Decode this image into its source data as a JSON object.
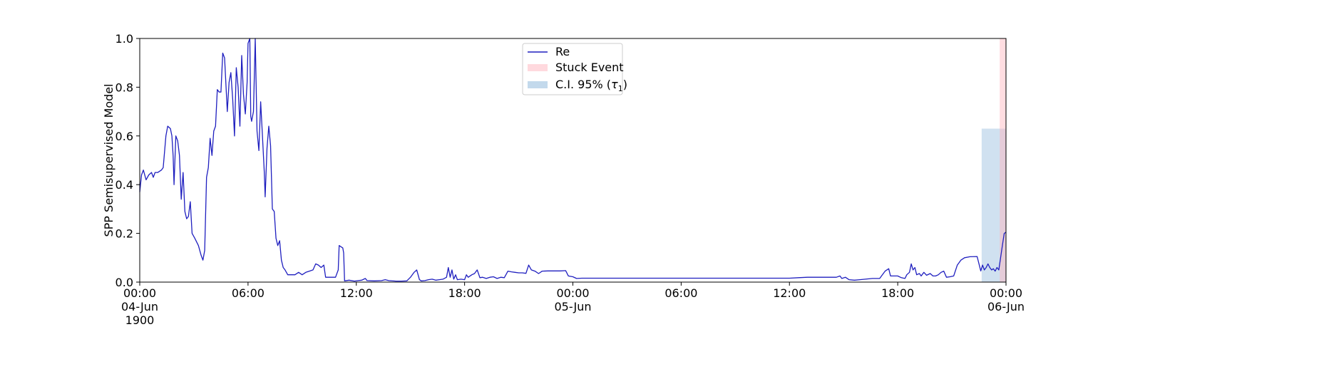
{
  "chart_data": {
    "type": "line",
    "ylabel": "SPP Semisupervised Model",
    "xlabel": "",
    "ylim": [
      0,
      1.0
    ],
    "xlim": [
      "1900-06-04 00:00",
      "1900-06-06 00:00"
    ],
    "x_unit": "hours from 1900-06-04 00:00",
    "y_ticks": [
      {
        "value": 0.0,
        "label": "0.0"
      },
      {
        "value": 0.2,
        "label": "0.2"
      },
      {
        "value": 0.4,
        "label": "0.4"
      },
      {
        "value": 0.6,
        "label": "0.6"
      },
      {
        "value": 0.8,
        "label": "0.8"
      },
      {
        "value": 1.0,
        "label": "1.0"
      }
    ],
    "x_ticks": [
      {
        "hour": 0,
        "lines": [
          "00:00",
          "04-Jun",
          "1900"
        ]
      },
      {
        "hour": 6,
        "lines": [
          "06:00"
        ]
      },
      {
        "hour": 12,
        "lines": [
          "12:00"
        ]
      },
      {
        "hour": 18,
        "lines": [
          "18:00"
        ]
      },
      {
        "hour": 24,
        "lines": [
          "00:00",
          "05-Jun"
        ]
      },
      {
        "hour": 30,
        "lines": [
          "06:00"
        ]
      },
      {
        "hour": 36,
        "lines": [
          "12:00"
        ]
      },
      {
        "hour": 42,
        "lines": [
          "18:00"
        ]
      },
      {
        "hour": 48,
        "lines": [
          "00:00",
          "06-Jun"
        ]
      }
    ],
    "legend": {
      "placement": "upper-center",
      "entries": [
        {
          "label": "Re",
          "kind": "line",
          "color": "#1f1fbf"
        },
        {
          "label": "Stuck Event",
          "kind": "patch",
          "color": "#ffc0c8"
        },
        {
          "label": "C.I. 95% (",
          "label_math": "τ",
          "label_sub": "1",
          "label_end": ")",
          "kind": "patch",
          "color": "#a9c9e4"
        }
      ]
    },
    "series": [
      {
        "name": "Re",
        "color": "#1f1fbf",
        "points": [
          [
            0.0,
            0.37
          ],
          [
            0.1,
            0.44
          ],
          [
            0.2,
            0.46
          ],
          [
            0.35,
            0.42
          ],
          [
            0.5,
            0.44
          ],
          [
            0.65,
            0.45
          ],
          [
            0.75,
            0.43
          ],
          [
            0.85,
            0.45
          ],
          [
            1.0,
            0.45
          ],
          [
            1.2,
            0.46
          ],
          [
            1.3,
            0.47
          ],
          [
            1.45,
            0.6
          ],
          [
            1.55,
            0.64
          ],
          [
            1.7,
            0.63
          ],
          [
            1.78,
            0.6
          ],
          [
            1.85,
            0.52
          ],
          [
            1.9,
            0.4
          ],
          [
            2.0,
            0.6
          ],
          [
            2.1,
            0.58
          ],
          [
            2.2,
            0.52
          ],
          [
            2.3,
            0.34
          ],
          [
            2.4,
            0.45
          ],
          [
            2.5,
            0.29
          ],
          [
            2.6,
            0.26
          ],
          [
            2.7,
            0.27
          ],
          [
            2.8,
            0.33
          ],
          [
            2.9,
            0.2
          ],
          [
            3.05,
            0.18
          ],
          [
            3.25,
            0.15
          ],
          [
            3.4,
            0.11
          ],
          [
            3.5,
            0.09
          ],
          [
            3.6,
            0.13
          ],
          [
            3.7,
            0.43
          ],
          [
            3.8,
            0.47
          ],
          [
            3.9,
            0.59
          ],
          [
            4.0,
            0.52
          ],
          [
            4.1,
            0.62
          ],
          [
            4.2,
            0.64
          ],
          [
            4.3,
            0.79
          ],
          [
            4.4,
            0.78
          ],
          [
            4.5,
            0.78
          ],
          [
            4.6,
            0.94
          ],
          [
            4.7,
            0.92
          ],
          [
            4.85,
            0.7
          ],
          [
            4.95,
            0.82
          ],
          [
            5.05,
            0.86
          ],
          [
            5.15,
            0.75
          ],
          [
            5.25,
            0.6
          ],
          [
            5.35,
            0.88
          ],
          [
            5.45,
            0.8
          ],
          [
            5.55,
            0.64
          ],
          [
            5.65,
            0.93
          ],
          [
            5.75,
            0.77
          ],
          [
            5.85,
            0.69
          ],
          [
            5.95,
            0.82
          ],
          [
            6.0,
            0.98
          ],
          [
            6.1,
            1.0
          ],
          [
            6.15,
            0.68
          ],
          [
            6.2,
            0.66
          ],
          [
            6.3,
            0.7
          ],
          [
            6.4,
            1.0
          ],
          [
            6.5,
            0.62
          ],
          [
            6.6,
            0.54
          ],
          [
            6.7,
            0.74
          ],
          [
            6.8,
            0.6
          ],
          [
            6.9,
            0.45
          ],
          [
            6.95,
            0.35
          ],
          [
            7.05,
            0.55
          ],
          [
            7.15,
            0.64
          ],
          [
            7.25,
            0.56
          ],
          [
            7.35,
            0.3
          ],
          [
            7.45,
            0.29
          ],
          [
            7.55,
            0.18
          ],
          [
            7.65,
            0.15
          ],
          [
            7.75,
            0.17
          ],
          [
            7.85,
            0.09
          ],
          [
            7.95,
            0.06
          ],
          [
            8.05,
            0.05
          ],
          [
            8.2,
            0.03
          ],
          [
            8.4,
            0.03
          ],
          [
            8.6,
            0.03
          ],
          [
            8.8,
            0.04
          ],
          [
            9.0,
            0.03
          ],
          [
            9.2,
            0.04
          ],
          [
            9.4,
            0.045
          ],
          [
            9.6,
            0.05
          ],
          [
            9.75,
            0.075
          ],
          [
            9.9,
            0.07
          ],
          [
            10.05,
            0.06
          ],
          [
            10.2,
            0.07
          ],
          [
            10.3,
            0.02
          ],
          [
            10.6,
            0.02
          ],
          [
            10.85,
            0.02
          ],
          [
            11.0,
            0.05
          ],
          [
            11.05,
            0.15
          ],
          [
            11.25,
            0.14
          ],
          [
            11.3,
            0.12
          ],
          [
            11.35,
            0.005
          ],
          [
            11.6,
            0.008
          ],
          [
            11.9,
            0.004
          ],
          [
            12.1,
            0.006
          ],
          [
            12.3,
            0.008
          ],
          [
            12.5,
            0.015
          ],
          [
            12.6,
            0.006
          ],
          [
            13.0,
            0.005
          ],
          [
            13.4,
            0.006
          ],
          [
            13.6,
            0.01
          ],
          [
            13.8,
            0.006
          ],
          [
            14.2,
            0.004
          ],
          [
            14.5,
            0.004
          ],
          [
            14.8,
            0.005
          ],
          [
            15.0,
            0.02
          ],
          [
            15.2,
            0.04
          ],
          [
            15.35,
            0.05
          ],
          [
            15.5,
            0.01
          ],
          [
            15.6,
            0.005
          ],
          [
            15.8,
            0.006
          ],
          [
            16.0,
            0.01
          ],
          [
            16.2,
            0.012
          ],
          [
            16.4,
            0.008
          ],
          [
            16.6,
            0.01
          ],
          [
            16.8,
            0.012
          ],
          [
            17.0,
            0.02
          ],
          [
            17.1,
            0.06
          ],
          [
            17.2,
            0.02
          ],
          [
            17.3,
            0.05
          ],
          [
            17.4,
            0.012
          ],
          [
            17.5,
            0.03
          ],
          [
            17.6,
            0.01
          ],
          [
            17.8,
            0.012
          ],
          [
            18.0,
            0.01
          ],
          [
            18.1,
            0.03
          ],
          [
            18.2,
            0.02
          ],
          [
            18.4,
            0.03
          ],
          [
            18.55,
            0.035
          ],
          [
            18.7,
            0.05
          ],
          [
            18.85,
            0.018
          ],
          [
            19.0,
            0.02
          ],
          [
            19.2,
            0.015
          ],
          [
            19.4,
            0.02
          ],
          [
            19.6,
            0.022
          ],
          [
            19.8,
            0.015
          ],
          [
            20.0,
            0.02
          ],
          [
            20.2,
            0.018
          ],
          [
            20.4,
            0.045
          ],
          [
            20.6,
            0.042
          ],
          [
            20.8,
            0.04
          ],
          [
            21.0,
            0.038
          ],
          [
            21.2,
            0.038
          ],
          [
            21.4,
            0.036
          ],
          [
            21.55,
            0.07
          ],
          [
            21.7,
            0.05
          ],
          [
            21.9,
            0.045
          ],
          [
            22.1,
            0.035
          ],
          [
            22.3,
            0.045
          ],
          [
            22.6,
            0.046
          ],
          [
            23.0,
            0.046
          ],
          [
            23.3,
            0.046
          ],
          [
            23.6,
            0.047
          ],
          [
            23.75,
            0.025
          ],
          [
            24.0,
            0.022
          ],
          [
            24.2,
            0.015
          ],
          [
            24.5,
            0.016
          ],
          [
            25.0,
            0.016
          ],
          [
            26.0,
            0.016
          ],
          [
            27.0,
            0.016
          ],
          [
            28.0,
            0.016
          ],
          [
            29.0,
            0.016
          ],
          [
            30.0,
            0.016
          ],
          [
            31.0,
            0.016
          ],
          [
            32.0,
            0.016
          ],
          [
            33.0,
            0.016
          ],
          [
            34.0,
            0.016
          ],
          [
            35.0,
            0.016
          ],
          [
            36.0,
            0.016
          ],
          [
            36.5,
            0.018
          ],
          [
            37.0,
            0.02
          ],
          [
            38.0,
            0.02
          ],
          [
            38.6,
            0.02
          ],
          [
            38.8,
            0.025
          ],
          [
            38.9,
            0.015
          ],
          [
            39.1,
            0.02
          ],
          [
            39.3,
            0.01
          ],
          [
            39.6,
            0.008
          ],
          [
            39.9,
            0.01
          ],
          [
            40.2,
            0.012
          ],
          [
            40.6,
            0.015
          ],
          [
            41.0,
            0.015
          ],
          [
            41.3,
            0.045
          ],
          [
            41.5,
            0.055
          ],
          [
            41.6,
            0.025
          ],
          [
            41.8,
            0.025
          ],
          [
            42.0,
            0.025
          ],
          [
            42.2,
            0.018
          ],
          [
            42.4,
            0.015
          ],
          [
            42.5,
            0.03
          ],
          [
            42.65,
            0.04
          ],
          [
            42.75,
            0.075
          ],
          [
            42.85,
            0.05
          ],
          [
            42.95,
            0.06
          ],
          [
            43.05,
            0.03
          ],
          [
            43.2,
            0.035
          ],
          [
            43.3,
            0.025
          ],
          [
            43.45,
            0.04
          ],
          [
            43.6,
            0.028
          ],
          [
            43.8,
            0.035
          ],
          [
            43.95,
            0.025
          ],
          [
            44.1,
            0.025
          ],
          [
            44.25,
            0.03
          ],
          [
            44.4,
            0.04
          ],
          [
            44.55,
            0.045
          ],
          [
            44.7,
            0.02
          ],
          [
            44.9,
            0.022
          ],
          [
            45.1,
            0.025
          ],
          [
            45.3,
            0.07
          ],
          [
            45.5,
            0.09
          ],
          [
            45.7,
            0.1
          ],
          [
            46.0,
            0.104
          ],
          [
            46.4,
            0.105
          ],
          [
            46.8,
            0.105
          ],
          [
            47.1,
            0.104
          ],
          [
            47.3,
            0.105
          ],
          [
            47.45,
            0.09
          ],
          [
            47.6,
            0.085
          ],
          [
            47.7,
            0.055
          ],
          [
            47.85,
            0.048
          ],
          [
            48.0,
            0.047
          ],
          [
            48.3,
            0.046
          ]
        ]
      }
    ],
    "tail_points_note": "",
    "tail_points": [
      [
        46.6,
        0.046
      ],
      [
        46.7,
        0.07
      ],
      [
        46.8,
        0.05
      ],
      [
        46.9,
        0.06
      ],
      [
        47.0,
        0.075
      ],
      [
        47.1,
        0.06
      ],
      [
        47.2,
        0.05
      ],
      [
        47.3,
        0.055
      ],
      [
        47.4,
        0.045
      ],
      [
        47.5,
        0.06
      ],
      [
        47.6,
        0.05
      ],
      [
        47.7,
        0.1
      ],
      [
        47.8,
        0.15
      ],
      [
        47.9,
        0.2
      ],
      [
        48.0,
        0.205
      ]
    ],
    "bands": [
      {
        "name": "C.I. 95% (τ1)",
        "x_start": 46.65,
        "x_end": 48.0,
        "y_start": 0.0,
        "y_end": 0.63,
        "color": "#a9c9e4",
        "opacity": 0.55
      },
      {
        "name": "Stuck Event",
        "x_start": 47.65,
        "x_end": 48.0,
        "y_start": 0.0,
        "y_end": 1.0,
        "color": "#ffb3bd",
        "opacity": 0.45
      }
    ]
  }
}
